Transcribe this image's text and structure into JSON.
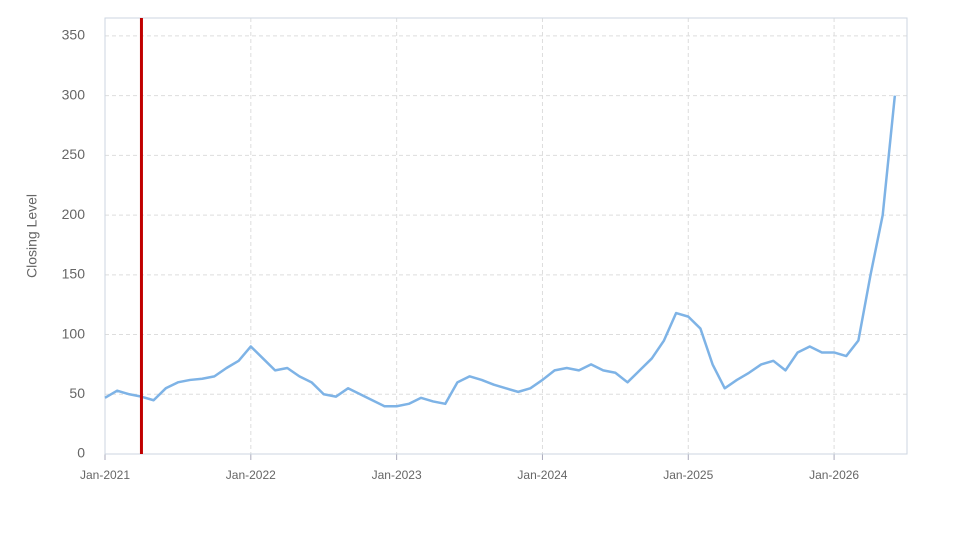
{
  "chart_data": {
    "type": "line",
    "y_label": "Closing Level",
    "x": [
      "2021-01",
      "2021-02",
      "2021-03",
      "2021-04",
      "2021-05",
      "2021-06",
      "2021-07",
      "2021-08",
      "2021-09",
      "2021-10",
      "2021-11",
      "2021-12",
      "2022-01",
      "2022-02",
      "2022-03",
      "2022-04",
      "2022-05",
      "2022-06",
      "2022-07",
      "2022-08",
      "2022-09",
      "2022-10",
      "2022-11",
      "2022-12",
      "2023-01",
      "2023-02",
      "2023-03",
      "2023-04",
      "2023-05",
      "2023-06",
      "2023-07",
      "2023-08",
      "2023-09",
      "2023-10",
      "2023-11",
      "2023-12",
      "2024-01",
      "2024-02",
      "2024-03",
      "2024-04",
      "2024-05",
      "2024-06",
      "2024-07",
      "2024-08",
      "2024-09",
      "2024-10",
      "2024-11",
      "2024-12",
      "2025-01",
      "2025-02",
      "2025-03",
      "2025-04",
      "2025-05",
      "2025-06",
      "2025-07",
      "2025-08",
      "2025-09",
      "2025-10",
      "2025-11",
      "2025-12",
      "2026-01",
      "2026-02",
      "2026-03",
      "2026-04",
      "2026-05",
      "2026-06"
    ],
    "series": [
      {
        "color": "#7eb3e6",
        "values": [
          47,
          53,
          50,
          48,
          45,
          55,
          60,
          62,
          63,
          65,
          72,
          78,
          90,
          80,
          70,
          72,
          65,
          60,
          50,
          48,
          55,
          50,
          45,
          40,
          40,
          42,
          47,
          44,
          42,
          60,
          65,
          62,
          58,
          55,
          52,
          55,
          62,
          70,
          72,
          70,
          75,
          70,
          68,
          60,
          70,
          80,
          95,
          118,
          115,
          105,
          75,
          55,
          62,
          68,
          75,
          78,
          70,
          85,
          90,
          85,
          85,
          82,
          95,
          150,
          200,
          300
        ]
      }
    ],
    "xlim": [
      "2021-01",
      "2026-07"
    ],
    "xticks": [
      {
        "value": "2021-01",
        "label": "Jan-2021"
      },
      {
        "value": "2022-01",
        "label": "Jan-2022"
      },
      {
        "value": "2023-01",
        "label": "Jan-2023"
      },
      {
        "value": "2024-01",
        "label": "Jan-2024"
      },
      {
        "value": "2025-01",
        "label": "Jan-2025"
      },
      {
        "value": "2026-01",
        "label": "Jan-2026"
      }
    ],
    "ylim": [
      0,
      365
    ],
    "yticks": [
      0,
      50,
      100,
      150,
      200,
      250,
      300,
      350
    ],
    "grid": true,
    "vline": {
      "x": "2021-04",
      "color": "#c00000"
    }
  }
}
